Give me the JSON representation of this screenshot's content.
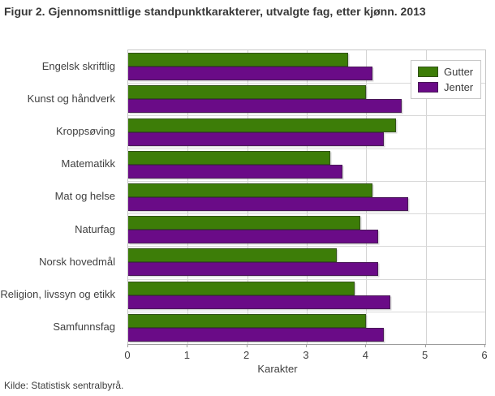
{
  "figure": {
    "title": "Figur 2. Gjennomsnittlige standpunktkarakterer, utvalgte fag, etter kjønn. 2013",
    "source": "Kilde: Statistisk sentralbyrå."
  },
  "chart_data": {
    "type": "bar",
    "orientation": "horizontal",
    "title": "Figur 2. Gjennomsnittlige standpunktkarakterer, utvalgte fag, etter kjønn. 2013",
    "categories": [
      "Engelsk skriftlig",
      "Kunst og håndverk",
      "Kroppsøving",
      "Matematikk",
      "Mat og helse",
      "Naturfag",
      "Norsk hovedmål",
      "Religion, livssyn og etikk",
      "Samfunnsfag"
    ],
    "series": [
      {
        "name": "Gutter",
        "color": "#3d7d08",
        "values": [
          3.7,
          4.0,
          4.5,
          3.4,
          4.1,
          3.9,
          3.5,
          3.8,
          4.0
        ]
      },
      {
        "name": "Jenter",
        "color": "#6a0b87",
        "values": [
          4.1,
          4.6,
          4.3,
          3.6,
          4.7,
          4.2,
          4.2,
          4.4,
          4.3
        ]
      }
    ],
    "xlabel": "Karakter",
    "xlim": [
      0,
      6
    ],
    "xticks": [
      0,
      1,
      2,
      3,
      4,
      5,
      6
    ],
    "grid": true,
    "legend_position": "top-right",
    "colors": {
      "grid": "#d4d4d4",
      "plot_border": "#c6c6c6",
      "axis_line": "#9c9c9c",
      "text": "#3f3f3f"
    }
  }
}
